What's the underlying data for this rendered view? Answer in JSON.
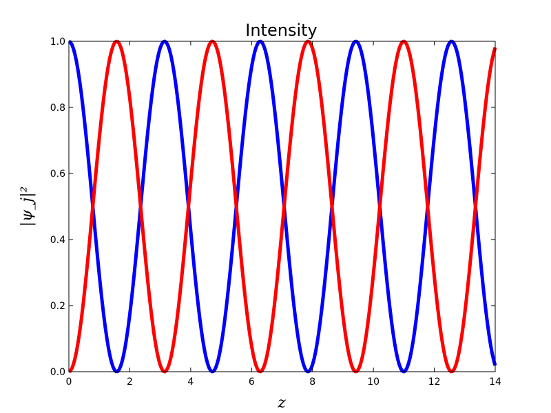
{
  "chart_data": {
    "type": "line",
    "title": "Intensity",
    "xlabel": "z",
    "ylabel": "|ψ_j|²",
    "xlim": [
      0,
      14
    ],
    "ylim": [
      0,
      1.0
    ],
    "x_ticks": [
      "0",
      "2",
      "4",
      "6",
      "8",
      "10",
      "12",
      "14"
    ],
    "y_ticks": [
      "0.0",
      "0.2",
      "0.4",
      "0.6",
      "0.8",
      "1.0"
    ],
    "grid": false,
    "legend": "none",
    "x_sample_step": 0.05,
    "series": [
      {
        "color": "#0000ff",
        "line_width": 5,
        "expression": "cos(z)^2"
      },
      {
        "color": "#ff0000",
        "line_width": 5,
        "expression": "sin(z)^2"
      }
    ]
  }
}
